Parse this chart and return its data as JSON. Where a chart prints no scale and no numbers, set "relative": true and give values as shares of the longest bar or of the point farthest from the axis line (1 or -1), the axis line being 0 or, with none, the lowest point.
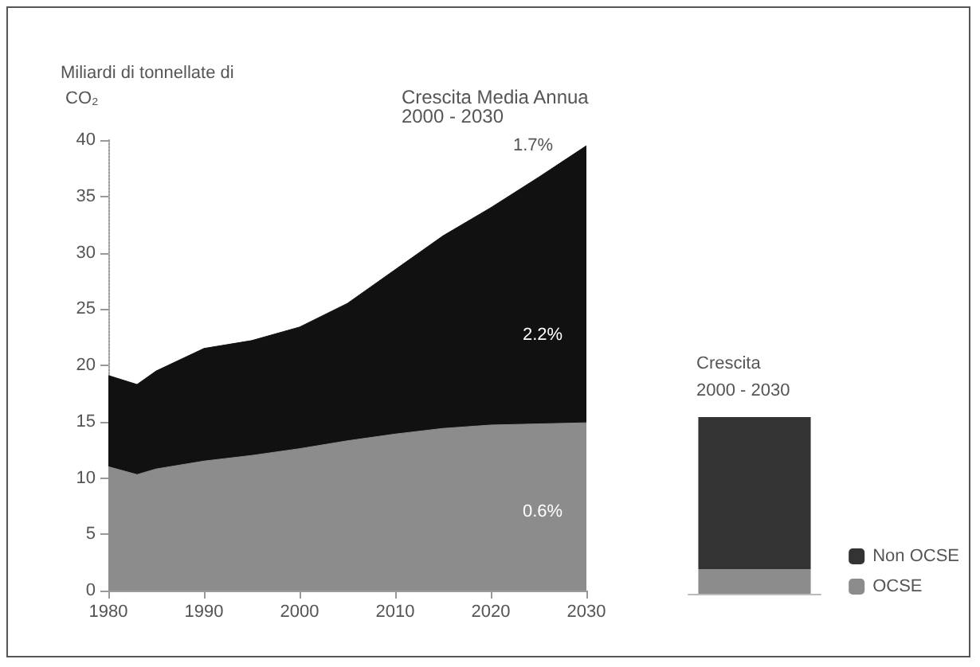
{
  "chart_data": [
    {
      "type": "area",
      "ylabel": "Miliardi di tonnellate di CO₂",
      "stacked": true,
      "x": [
        1980,
        1983,
        1985,
        1990,
        1995,
        2000,
        2005,
        2010,
        2015,
        2020,
        2025,
        2030
      ],
      "series": [
        {
          "color": "#8c8c8c",
          "values": [
            11.0,
            10.3,
            10.8,
            11.5,
            12.0,
            12.6,
            13.3,
            13.9,
            14.4,
            14.7,
            14.8,
            14.9
          ]
        },
        {
          "color": "#111111",
          "values": [
            8.1,
            8.0,
            8.7,
            10.0,
            10.2,
            10.8,
            12.2,
            14.6,
            17.1,
            19.3,
            21.9,
            24.6
          ]
        }
      ],
      "xlim": [
        1980,
        2030
      ],
      "xticks": [
        1980,
        1990,
        2000,
        2010,
        2020,
        2030
      ],
      "ylim": [
        0,
        40
      ],
      "yticks": [
        0,
        5,
        10,
        15,
        20,
        25,
        30,
        35,
        40
      ],
      "grid": false,
      "annotations": [
        "Crescita Media Annua\n2000 - 2030",
        "1.7%",
        "2.2%",
        "0.6%"
      ]
    },
    {
      "type": "bar",
      "title": "Crescita\n2000 - 2030",
      "stacked": true,
      "relative": true,
      "categories": [
        null
      ],
      "series": [
        {
          "name": "OCSE",
          "color": "#8c8c8c",
          "values": [
            0.14
          ]
        },
        {
          "name": "Non OCSE",
          "color": "#333333",
          "values": [
            0.86
          ]
        }
      ],
      "legend": "bottom right"
    }
  ]
}
